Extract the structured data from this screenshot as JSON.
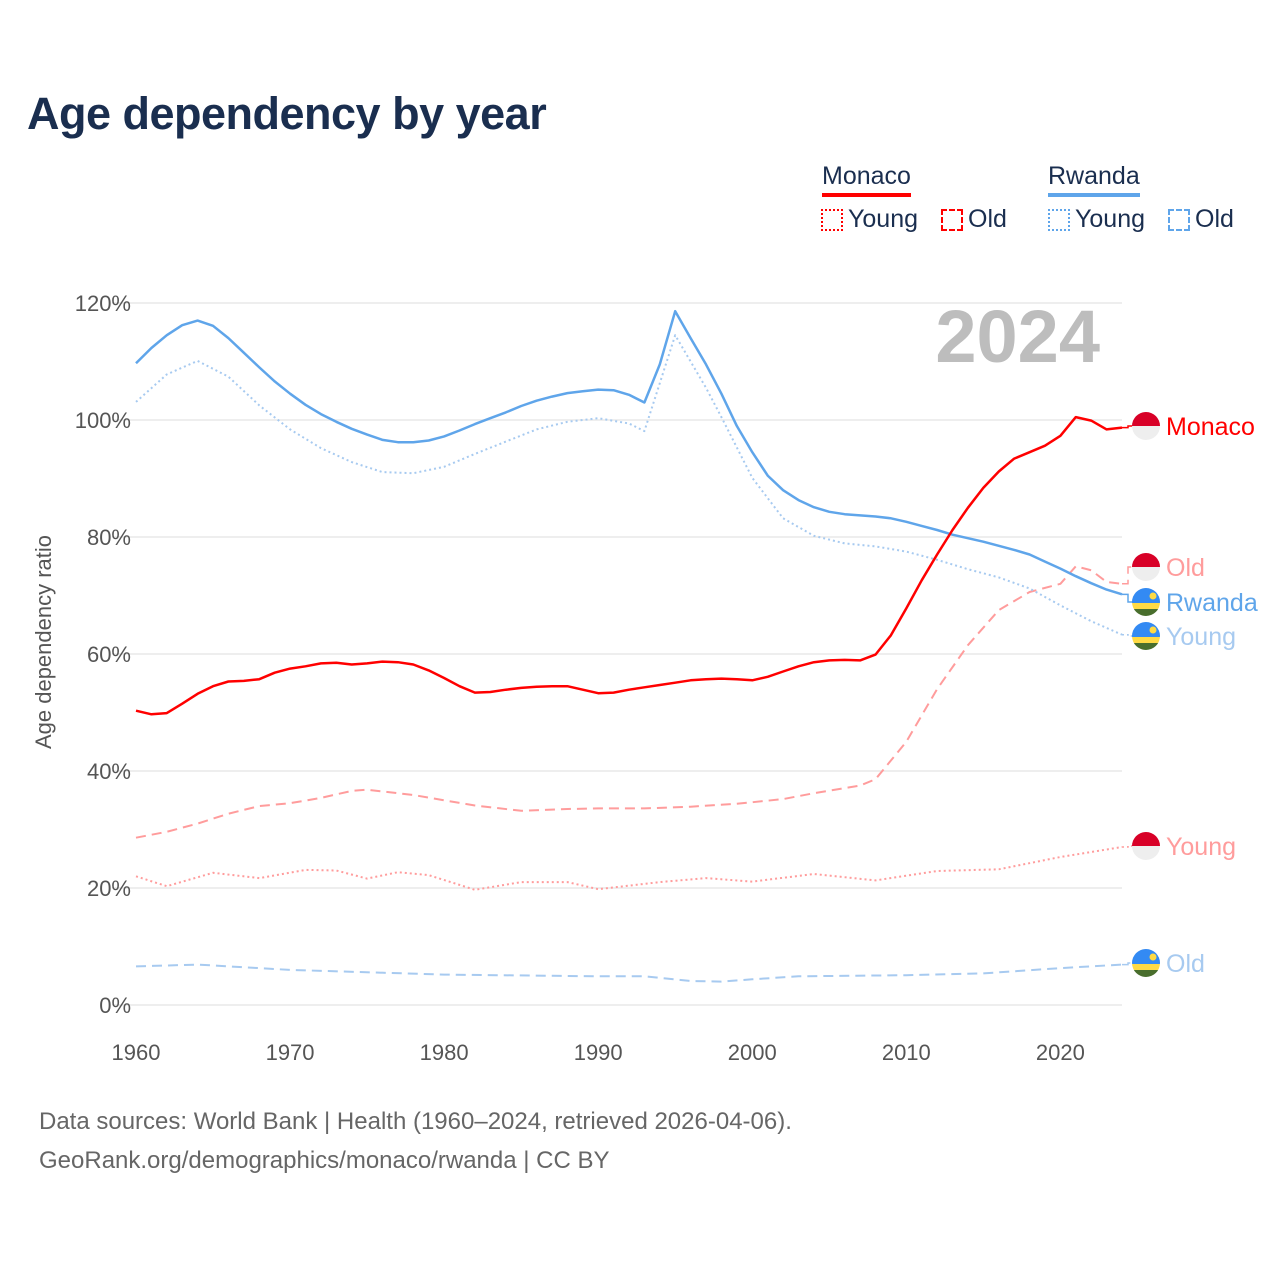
{
  "title": "Age dependency by year",
  "legend": {
    "monaco": {
      "label": "Monaco",
      "young": "Young",
      "old": "Old"
    },
    "rwanda": {
      "label": "Rwanda",
      "young": "Young",
      "old": "Old"
    }
  },
  "footer": {
    "line1": "Data sources: World Bank | Health (1960–2024, retrieved 2026-04-06).",
    "line2": "GeoRank.org/demographics/monaco/rwanda | CC BY"
  },
  "colors": {
    "monaco": "#ff0000",
    "monaco_light": "#ff9c9c",
    "rwanda": "#5fa5ea",
    "rwanda_light": "#a7caf0",
    "title": "#1a2e4f"
  },
  "chart_data": {
    "type": "line",
    "title": "Age dependency by year",
    "year_watermark": "2024",
    "xlabel": "",
    "ylabel": "Age dependency ratio",
    "xlim": [
      1960,
      2024
    ],
    "ylim": [
      0,
      120
    ],
    "xticks": [
      "1960",
      "1970",
      "1980",
      "1990",
      "2000",
      "2010",
      "2020"
    ],
    "yticks": [
      "0%",
      "20%",
      "40%",
      "60%",
      "80%",
      "100%",
      "120%"
    ],
    "grid": true,
    "series": [
      {
        "name": "Monaco",
        "end_label": "Monaco",
        "color": "#ff0000",
        "dash": "solid",
        "x": [
          1960,
          1961,
          1962,
          1963,
          1964,
          1965,
          1966,
          1967,
          1968,
          1969,
          1970,
          1971,
          1972,
          1973,
          1974,
          1975,
          1976,
          1977,
          1978,
          1979,
          1980,
          1981,
          1982,
          1983,
          1984,
          1985,
          1986,
          1987,
          1988,
          1989,
          1990,
          1991,
          1992,
          1993,
          1994,
          1995,
          1996,
          1997,
          1998,
          1999,
          2000,
          2001,
          2002,
          2003,
          2004,
          2005,
          2006,
          2007,
          2008,
          2009,
          2010,
          2011,
          2012,
          2013,
          2014,
          2015,
          2016,
          2017,
          2018,
          2019,
          2020,
          2021,
          2022,
          2023,
          2024
        ],
        "y": [
          50.3,
          49.7,
          49.9,
          51.5,
          53.2,
          54.5,
          55.3,
          55.4,
          55.7,
          56.8,
          57.5,
          57.9,
          58.4,
          58.5,
          58.2,
          58.4,
          58.7,
          58.6,
          58.2,
          57.2,
          55.9,
          54.5,
          53.4,
          53.5,
          53.9,
          54.2,
          54.4,
          54.5,
          54.5,
          53.9,
          53.3,
          53.4,
          53.9,
          54.3,
          54.7,
          55.1,
          55.5,
          55.7,
          55.8,
          55.7,
          55.5,
          56.1,
          57.0,
          57.9,
          58.6,
          58.9,
          59.0,
          58.9,
          59.9,
          63.2,
          67.8,
          72.6,
          77.0,
          81.2,
          85.0,
          88.4,
          91.2,
          93.4,
          94.5,
          95.6,
          97.3,
          100.5,
          99.9,
          98.4,
          98.7
        ]
      },
      {
        "name": "Monaco Old",
        "end_label": "Old",
        "color": "#ff9c9c",
        "dash": "dashed",
        "x": [
          1960,
          1962,
          1964,
          1966,
          1968,
          1970,
          1972,
          1974,
          1975,
          1978,
          1980,
          1982,
          1985,
          1988,
          1990,
          1993,
          1996,
          1999,
          2002,
          2004,
          2007,
          2008,
          2010,
          2012,
          2014,
          2016,
          2018,
          2020,
          2021,
          2022,
          2023,
          2024
        ],
        "y": [
          28.6,
          29.6,
          31.0,
          32.7,
          34.0,
          34.5,
          35.4,
          36.6,
          36.8,
          35.9,
          35.0,
          34.1,
          33.2,
          33.5,
          33.6,
          33.6,
          33.9,
          34.4,
          35.2,
          36.2,
          37.5,
          38.6,
          45.0,
          54.0,
          61.5,
          67.5,
          70.6,
          72.0,
          75.0,
          74.3,
          72.3,
          72.0
        ]
      },
      {
        "name": "Monaco Young",
        "end_label": "Young",
        "color": "#ff9c9c",
        "dash": "dotted",
        "x": [
          1960,
          1962,
          1965,
          1968,
          1971,
          1973,
          1975,
          1977,
          1979,
          1982,
          1985,
          1988,
          1990,
          1994,
          1997,
          2000,
          2004,
          2008,
          2012,
          2016,
          2020,
          2024
        ],
        "y": [
          22.0,
          20.3,
          22.6,
          21.7,
          23.1,
          23.0,
          21.6,
          22.7,
          22.2,
          19.7,
          21.0,
          21.0,
          19.8,
          21.0,
          21.7,
          21.1,
          22.4,
          21.3,
          22.9,
          23.2,
          25.3,
          27.0
        ]
      },
      {
        "name": "Rwanda",
        "end_label": "Rwanda",
        "color": "#5fa5ea",
        "dash": "solid",
        "x": [
          1960,
          1961,
          1962,
          1963,
          1964,
          1965,
          1966,
          1967,
          1968,
          1969,
          1970,
          1971,
          1972,
          1973,
          1974,
          1975,
          1976,
          1977,
          1978,
          1979,
          1980,
          1981,
          1982,
          1983,
          1984,
          1985,
          1986,
          1987,
          1988,
          1989,
          1990,
          1991,
          1992,
          1993,
          1994,
          1995,
          1996,
          1997,
          1998,
          1999,
          2000,
          2001,
          2002,
          2003,
          2004,
          2005,
          2006,
          2007,
          2008,
          2009,
          2010,
          2011,
          2012,
          2013,
          2014,
          2015,
          2016,
          2017,
          2018,
          2019,
          2020,
          2021,
          2022,
          2023,
          2024
        ],
        "y": [
          109.7,
          112.3,
          114.5,
          116.2,
          117.0,
          116.1,
          114.0,
          111.5,
          109.0,
          106.6,
          104.5,
          102.6,
          101.0,
          99.7,
          98.5,
          97.5,
          96.6,
          96.2,
          96.2,
          96.5,
          97.2,
          98.2,
          99.3,
          100.3,
          101.3,
          102.4,
          103.3,
          104.0,
          104.6,
          104.9,
          105.2,
          105.1,
          104.3,
          103.0,
          109.5,
          118.6,
          114.0,
          109.5,
          104.5,
          99.0,
          94.5,
          90.5,
          88.0,
          86.3,
          85.1,
          84.3,
          83.9,
          83.7,
          83.5,
          83.2,
          82.6,
          81.9,
          81.2,
          80.4,
          79.8,
          79.2,
          78.5,
          77.8,
          77.0,
          75.8,
          74.6,
          73.3,
          72.1,
          71.0,
          70.2
        ]
      },
      {
        "name": "Rwanda Young",
        "end_label": "Young",
        "color": "#a7caf0",
        "dash": "dotted",
        "x": [
          1960,
          1962,
          1964,
          1966,
          1968,
          1970,
          1972,
          1974,
          1976,
          1978,
          1980,
          1982,
          1984,
          1986,
          1988,
          1990,
          1992,
          1993,
          1995,
          1997,
          1998,
          2000,
          2002,
          2004,
          2006,
          2008,
          2010,
          2012,
          2014,
          2016,
          2018,
          2020,
          2022,
          2024
        ],
        "y": [
          103.1,
          107.8,
          110.1,
          107.4,
          102.5,
          98.4,
          95.2,
          92.8,
          91.1,
          90.9,
          92.0,
          94.2,
          96.3,
          98.4,
          99.7,
          100.3,
          99.4,
          98.1,
          114.5,
          105.5,
          100.5,
          90.1,
          83.2,
          80.2,
          78.9,
          78.4,
          77.5,
          76.1,
          74.5,
          73.1,
          71.2,
          68.3,
          65.6,
          63.3
        ]
      },
      {
        "name": "Rwanda Old",
        "end_label": "Old",
        "color": "#a7caf0",
        "dash": "dashed",
        "x": [
          1960,
          1964,
          1970,
          1980,
          1990,
          1993,
          1996,
          1998,
          2000,
          2003,
          2010,
          2015,
          2020,
          2024
        ],
        "y": [
          6.6,
          6.9,
          6.0,
          5.2,
          4.9,
          4.9,
          4.1,
          4.0,
          4.4,
          4.9,
          5.1,
          5.4,
          6.3,
          6.9
        ]
      }
    ]
  }
}
